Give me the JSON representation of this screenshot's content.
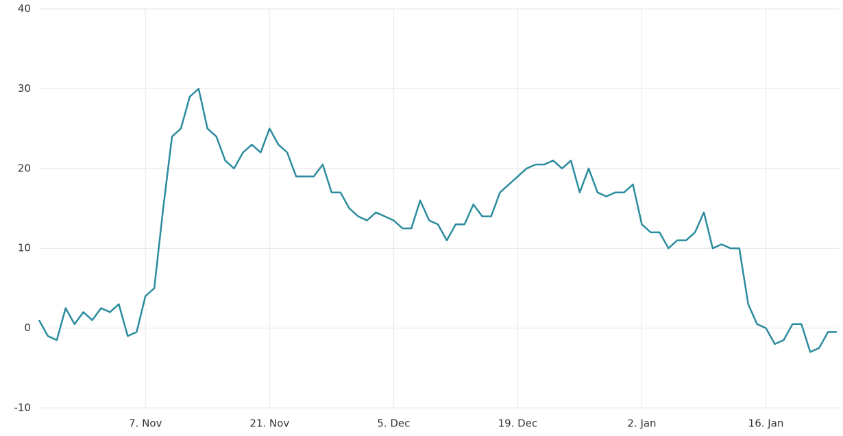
{
  "chart_data": {
    "type": "line",
    "x": [
      "26. Oct",
      "27. Oct",
      "28. Oct",
      "29. Oct",
      "30. Oct",
      "31. Oct",
      "1. Nov",
      "2. Nov",
      "3. Nov",
      "4. Nov",
      "5. Nov",
      "6. Nov",
      "7. Nov",
      "8. Nov",
      "9. Nov",
      "10. Nov",
      "11. Nov",
      "12. Nov",
      "13. Nov",
      "14. Nov",
      "15. Nov",
      "16. Nov",
      "17. Nov",
      "18. Nov",
      "19. Nov",
      "20. Nov",
      "21. Nov",
      "22. Nov",
      "23. Nov",
      "24. Nov",
      "25. Nov",
      "26. Nov",
      "27. Nov",
      "28. Nov",
      "29. Nov",
      "30. Nov",
      "1. Dec",
      "2. Dec",
      "3. Dec",
      "4. Dec",
      "5. Dec",
      "6. Dec",
      "7. Dec",
      "8. Dec",
      "9. Dec",
      "10. Dec",
      "11. Dec",
      "12. Dec",
      "13. Dec",
      "14. Dec",
      "15. Dec",
      "16. Dec",
      "17. Dec",
      "18. Dec",
      "19. Dec",
      "20. Dec",
      "21. Dec",
      "22. Dec",
      "23. Dec",
      "24. Dec",
      "25. Dec",
      "26. Dec",
      "27. Dec",
      "28. Dec",
      "29. Dec",
      "30. Dec",
      "31. Dec",
      "1. Jan",
      "2. Jan",
      "3. Jan",
      "4. Jan",
      "5. Jan",
      "6. Jan",
      "7. Jan",
      "8. Jan",
      "9. Jan",
      "10. Jan",
      "11. Jan",
      "12. Jan",
      "13. Jan",
      "14. Jan",
      "15. Jan",
      "16. Jan",
      "17. Jan",
      "18. Jan",
      "19. Jan",
      "20. Jan",
      "21. Jan",
      "22. Jan",
      "23. Jan",
      "24. Jan"
    ],
    "values": [
      1,
      -1,
      -1.5,
      2.5,
      0.5,
      2,
      1,
      2.5,
      2,
      3,
      -1,
      -0.5,
      4,
      5,
      15,
      24,
      25,
      29,
      30,
      25,
      24,
      21,
      20,
      22,
      23,
      22,
      25,
      23,
      22,
      19,
      19,
      19,
      20.5,
      17,
      17,
      15,
      14,
      13.5,
      14.5,
      14,
      13.5,
      12.5,
      12.5,
      16,
      13.5,
      13,
      11,
      13,
      13,
      15.5,
      14,
      14,
      17,
      18,
      19,
      20,
      20.5,
      20.5,
      21,
      20,
      21,
      17,
      20,
      17,
      16.5,
      17,
      17,
      18,
      13,
      12,
      12,
      10,
      11,
      11,
      12,
      14.5,
      10,
      10.5,
      10,
      10,
      3,
      0.5,
      0,
      -2,
      -1.5,
      0.5,
      0.5,
      -3,
      -2.5,
      -0.5,
      -0.5
    ],
    "color": "#2a8b9e",
    "ylim": [
      -10,
      40
    ],
    "yticks": [
      -10,
      0,
      10,
      20,
      30,
      40
    ],
    "xticks": [
      "7. Nov",
      "21. Nov",
      "5. Dec",
      "19. Dec",
      "2. Jan",
      "16. Jan"
    ],
    "grid": true
  }
}
